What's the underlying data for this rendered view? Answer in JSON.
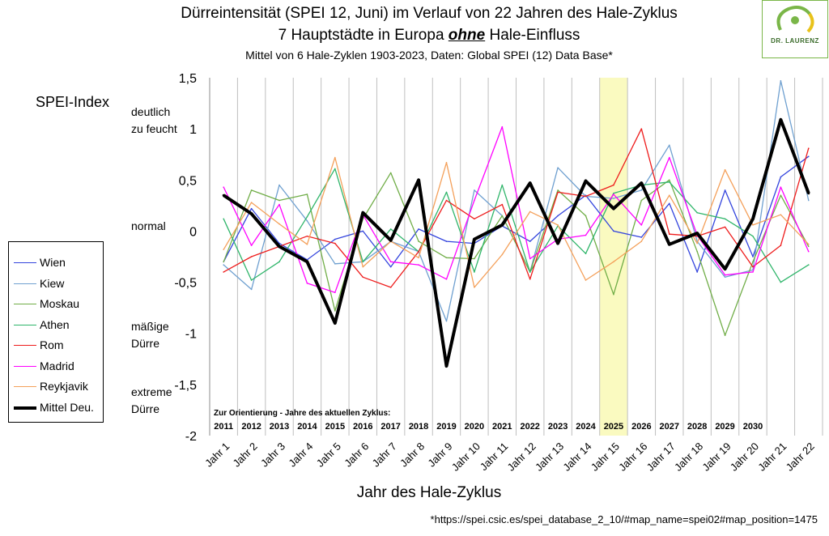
{
  "title_line1": "Dürreintensität (SPEI 12, Juni) im Verlauf von 22 Jahren des Hale-Zyklus",
  "title_line2_pre": "7 Hauptstädte in Europa ",
  "title_line2_em": "ohne",
  "title_line2_post": " Hale-Einfluss",
  "subtitle": "Mittel von 6 Hale-Zyklen 1903-2023, Daten: Global SPEI (12) Data Base*",
  "ylabel": "SPEI-Index",
  "xlabel": "Jahr des Hale-Zyklus",
  "source": "*https://spei.csic.es/spei_database_2_10/#map_name=spei02#map_position=1475",
  "logo_text": "DR. LAURENZ",
  "annotations": {
    "wet_1": "deutlich",
    "wet_2": "zu feucht",
    "normal": "normal",
    "moderate_1": "mäßige",
    "moderate_2": "Dürre",
    "extreme_1": "extreme",
    "extreme_2": "Dürre"
  },
  "orientation_label": "Zur Orientierung - Jahre des aktuellen Zyklus:",
  "cycle_years": [
    "2011",
    "2012",
    "2013",
    "2014",
    "2015",
    "2016",
    "2017",
    "2018",
    "2019",
    "2020",
    "2021",
    "2022",
    "2023",
    "2024",
    "2025",
    "2026",
    "2027",
    "2028",
    "2029",
    "2030"
  ],
  "colors": {
    "Wien": "#3344dd",
    "Kiew": "#6fa0d0",
    "Moskau": "#70ad47",
    "Athen": "#2fb56a",
    "Rom": "#ee1c1c",
    "Madrid": "#ff00ff",
    "Reykjavik": "#f4a05a",
    "Mittel Deu.": "#000000",
    "highlight": "#fafac0"
  },
  "chart_data": {
    "type": "line",
    "categories": [
      "Jahr 1",
      "Jahr 2",
      "Jahr 3",
      "Jahr 4",
      "Jahr 5",
      "Jahr 6",
      "Jahr 7",
      "Jahr 8",
      "Jahr 9",
      "Jahr 10",
      "Jahr 11",
      "Jahr 12",
      "Jahr 13",
      "Jahr 14",
      "Jahr 15",
      "Jahr 16",
      "Jahr 17",
      "Jahr 18",
      "Jahr 19",
      "Jahr 20",
      "Jahr 21",
      "Jahr 22"
    ],
    "ylim": [
      -2,
      1.5
    ],
    "yticks": [
      "1,5",
      "1",
      "0,5",
      "0",
      "-0,5",
      "-1",
      "-1,5",
      "-2"
    ],
    "ytick_values": [
      1.5,
      1,
      0.5,
      0,
      -0.5,
      -1,
      -1.5,
      -2
    ],
    "highlight_category": "Jahr 15",
    "grid": "vertical",
    "legend_position": "left",
    "series": [
      {
        "name": "Wien",
        "values": [
          -0.3,
          0.22,
          -0.12,
          -0.28,
          -0.08,
          0.0,
          -0.35,
          0.02,
          -0.1,
          -0.12,
          0.05,
          -0.1,
          0.15,
          0.35,
          0.0,
          -0.06,
          0.27,
          -0.4,
          0.4,
          -0.25,
          0.53,
          0.73
        ]
      },
      {
        "name": "Kiew",
        "values": [
          -0.33,
          -0.57,
          0.45,
          0.1,
          -0.32,
          -0.3,
          -0.1,
          -0.2,
          -0.88,
          0.4,
          0.15,
          -0.4,
          0.62,
          0.34,
          0.32,
          0.4,
          0.84,
          -0.1,
          -0.45,
          -0.38,
          1.47,
          0.3
        ]
      },
      {
        "name": "Moskau",
        "values": [
          -0.3,
          0.4,
          0.3,
          0.36,
          -0.78,
          0.12,
          0.57,
          -0.1,
          -0.26,
          -0.27,
          0.15,
          -0.4,
          0.4,
          0.15,
          -0.62,
          0.3,
          0.5,
          -0.2,
          -1.02,
          -0.3,
          0.35,
          -0.15
        ]
      },
      {
        "name": "Athen",
        "values": [
          0.12,
          -0.48,
          -0.3,
          0.14,
          0.61,
          -0.3,
          0.02,
          -0.2,
          0.38,
          -0.4,
          0.45,
          -0.4,
          0.05,
          -0.22,
          0.37,
          0.45,
          0.48,
          0.18,
          0.12,
          -0.05,
          -0.5,
          -0.33
        ]
      },
      {
        "name": "Rom",
        "values": [
          -0.4,
          -0.25,
          -0.15,
          -0.05,
          -0.12,
          -0.45,
          -0.55,
          -0.2,
          0.3,
          0.12,
          0.26,
          -0.47,
          0.38,
          0.34,
          0.45,
          1.0,
          -0.03,
          -0.05,
          0.04,
          -0.35,
          -0.14,
          0.81
        ]
      },
      {
        "name": "Madrid",
        "values": [
          0.43,
          -0.14,
          0.26,
          -0.51,
          -0.6,
          0.16,
          -0.3,
          -0.33,
          -0.47,
          0.3,
          1.02,
          -0.27,
          -0.08,
          -0.04,
          0.36,
          0.06,
          0.72,
          -0.04,
          -0.43,
          -0.4,
          0.43,
          -0.2
        ]
      },
      {
        "name": "Reykjavik",
        "values": [
          -0.18,
          0.28,
          0.07,
          -0.13,
          0.72,
          -0.35,
          -0.1,
          -0.26,
          0.67,
          -0.55,
          -0.23,
          0.19,
          0.06,
          -0.48,
          -0.3,
          -0.1,
          0.35,
          -0.12,
          0.6,
          0.06,
          0.16,
          -0.13
        ]
      },
      {
        "name": "Mittel Deu.",
        "values": [
          0.35,
          0.17,
          -0.15,
          -0.3,
          -0.9,
          0.18,
          -0.09,
          0.5,
          -1.32,
          -0.08,
          0.06,
          0.47,
          -0.12,
          0.49,
          0.22,
          0.47,
          -0.13,
          -0.02,
          -0.37,
          0.12,
          1.09,
          0.37
        ]
      }
    ]
  }
}
